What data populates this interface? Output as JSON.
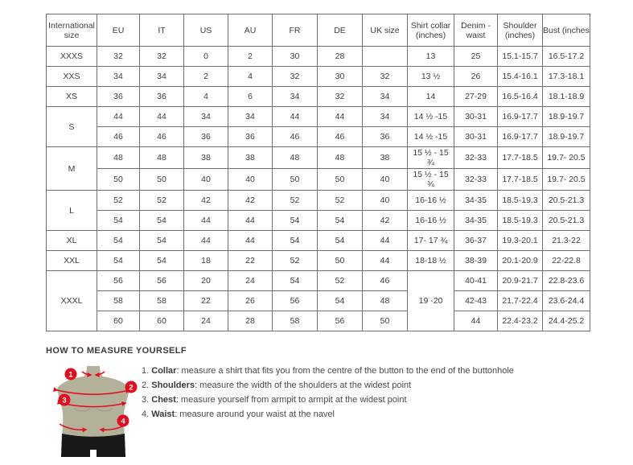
{
  "table": {
    "columns": [
      "International size",
      "EU",
      "IT",
      "US",
      "AU",
      "FR",
      "DE",
      "UK size",
      "Shirt collar (inches)",
      "Denim - waist",
      "Shoulder (inches)",
      "Bust (inches)"
    ],
    "groups": [
      {
        "label": "XXXS",
        "rows": [
          [
            "32",
            "32",
            "0",
            "2",
            "30",
            "28",
            "",
            "13",
            "25",
            "15.1-15.7",
            "16.5-17.2"
          ]
        ]
      },
      {
        "label": "XXS",
        "rows": [
          [
            "34",
            "34",
            "2",
            "4",
            "32",
            "30",
            "32",
            "13 ½",
            "26",
            "15.4-16.1",
            "17.3-18.1"
          ]
        ]
      },
      {
        "label": "XS",
        "rows": [
          [
            "36",
            "36",
            "4",
            "6",
            "34",
            "32",
            "34",
            "14",
            "27-29",
            "16.5-16.4",
            "18.1-18.9"
          ]
        ]
      },
      {
        "label": "S",
        "rows": [
          [
            "44",
            "44",
            "34",
            "34",
            "44",
            "44",
            "34",
            "14 ½ -15",
            "30-31",
            "16.9-17.7",
            "18.9-19.7"
          ],
          [
            "46",
            "46",
            "36",
            "36",
            "46",
            "46",
            "36",
            "14 ½ -15",
            "30-31",
            "16.9-17.7",
            "18.9-19.7"
          ]
        ]
      },
      {
        "label": "M",
        "rows": [
          [
            "48",
            "48",
            "38",
            "38",
            "48",
            "48",
            "38",
            "15 ½ - 15 ¾",
            "32-33",
            "17.7-18.5",
            "19.7- 20.5"
          ],
          [
            "50",
            "50",
            "40",
            "40",
            "50",
            "50",
            "40",
            "15 ½ - 15 ¾",
            "32-33",
            "17.7-18.5",
            "19.7- 20.5"
          ]
        ]
      },
      {
        "label": "L",
        "rows": [
          [
            "52",
            "52",
            "42",
            "42",
            "52",
            "52",
            "40",
            "16-16 ½",
            "34-35",
            "18.5-19.3",
            "20.5-21.3"
          ],
          [
            "54",
            "54",
            "44",
            "44",
            "54",
            "54",
            "42",
            "16-16 ½",
            "34-35",
            "18.5-19.3",
            "20.5-21.3"
          ]
        ]
      },
      {
        "label": "XL",
        "rows": [
          [
            "54",
            "54",
            "44",
            "44",
            "54",
            "54",
            "44",
            "17- 17 ¾",
            "36-37",
            "19.3-20.1",
            "21.3-22"
          ]
        ]
      },
      {
        "label": "XXL",
        "rows": [
          [
            "54",
            "54",
            "18",
            "22",
            "52",
            "50",
            "44",
            "18-18 ½",
            "38-39",
            "20.1-20.9",
            "22-22.8"
          ]
        ]
      },
      {
        "label": "XXXL",
        "merged": {
          "col": 7,
          "value": "19 -20"
        },
        "rows": [
          [
            "56",
            "56",
            "20",
            "24",
            "54",
            "52",
            "46",
            null,
            "40-41",
            "20.9-21.7",
            "22.8-23.6"
          ],
          [
            "58",
            "58",
            "22",
            "26",
            "56",
            "54",
            "48",
            null,
            "42-43",
            "21.7-22.4",
            "23.6-24.4"
          ],
          [
            "60",
            "60",
            "24",
            "28",
            "58",
            "56",
            "50",
            null,
            "44",
            "22.4-23.2",
            "24.4-25.2"
          ]
        ]
      }
    ]
  },
  "measure": {
    "heading": "HOW TO MEASURE YOURSELF",
    "steps": [
      {
        "num": "1.",
        "label": "Collar",
        "text": ": measure a shirt that fits you from the centre of the button to the end of the buttonhole"
      },
      {
        "num": "2.",
        "label": "Shoulders",
        "text": ": measure the width of the shoulders at the widest point"
      },
      {
        "num": "3.",
        "label": "Chest",
        "text": ": measure yourself from armpit to armpit at the widest point"
      },
      {
        "num": "4.",
        "label": "Waist",
        "text": ": measure around your waist at the navel"
      }
    ],
    "figure_numbers": [
      "1",
      "2",
      "3",
      "4"
    ]
  },
  "colors": {
    "accent_red": "#e30b1e",
    "mannequin_body": "#b4b19b",
    "mannequin_shorts": "#181818",
    "border_dark": "#6f6f6f",
    "border_light": "#a9a9a9",
    "text": "#3c3c3c"
  }
}
